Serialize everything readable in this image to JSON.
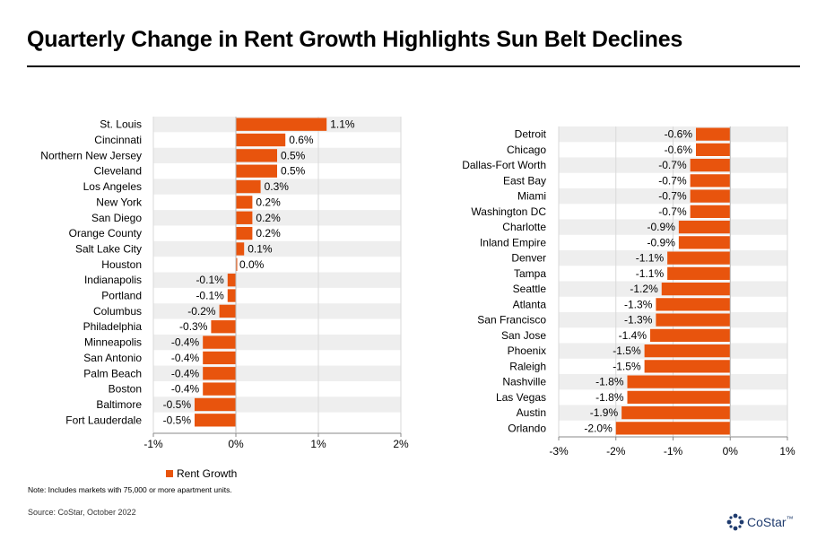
{
  "page": {
    "title": "Quarterly Change in Rent Growth Highlights Sun Belt Declines",
    "legend_label": "Rent Growth",
    "note": "Note: Includes markets with 75,000 or more apartment units.",
    "source": "Source: CoStar,  October 2022",
    "logo_text": "CoStar",
    "logo_mark": "™",
    "bar_color": "#e8540d",
    "band_color": "#eeeeee",
    "logo_color": "#1f3b6e"
  },
  "chart_data": [
    {
      "type": "bar",
      "orientation": "horizontal",
      "categories": [
        "St. Louis",
        "Cincinnati",
        "Northern New Jersey",
        "Cleveland",
        "Los Angeles",
        "New York",
        "San Diego",
        "Orange County",
        "Salt Lake City",
        "Houston",
        "Indianapolis",
        "Portland",
        "Columbus",
        "Philadelphia",
        "Minneapolis",
        "San Antonio",
        "Palm Beach",
        "Boston",
        "Baltimore",
        "Fort Lauderdale"
      ],
      "series": [
        {
          "name": "Rent Growth",
          "values": [
            1.1,
            0.6,
            0.5,
            0.5,
            0.3,
            0.2,
            0.2,
            0.2,
            0.1,
            0.0,
            -0.1,
            -0.1,
            -0.2,
            -0.3,
            -0.4,
            -0.4,
            -0.4,
            -0.4,
            -0.5,
            -0.5
          ]
        }
      ],
      "labels": [
        "1.1%",
        "0.6%",
        "0.5%",
        "0.5%",
        "0.3%",
        "0.2%",
        "0.2%",
        "0.2%",
        "0.1%",
        "0.0%",
        "-0.1%",
        "-0.1%",
        "-0.2%",
        "-0.3%",
        "-0.4%",
        "-0.4%",
        "-0.4%",
        "-0.4%",
        "-0.5%",
        "-0.5%"
      ],
      "xlim": [
        -1,
        2
      ],
      "xticks": [
        -1,
        0,
        1,
        2
      ],
      "xtick_labels": [
        "-1%",
        "0%",
        "1%",
        "2%"
      ]
    },
    {
      "type": "bar",
      "orientation": "horizontal",
      "categories": [
        "Detroit",
        "Chicago",
        "Dallas-Fort Worth",
        "East Bay",
        "Miami",
        "Washington DC",
        "Charlotte",
        "Inland Empire",
        "Denver",
        "Tampa",
        "Seattle",
        "Atlanta",
        "San Francisco",
        "San Jose",
        "Phoenix",
        "Raleigh",
        "Nashville",
        "Las Vegas",
        "Austin",
        "Orlando"
      ],
      "series": [
        {
          "name": "Rent Growth",
          "values": [
            -0.6,
            -0.6,
            -0.7,
            -0.7,
            -0.7,
            -0.7,
            -0.9,
            -0.9,
            -1.1,
            -1.1,
            -1.2,
            -1.3,
            -1.3,
            -1.4,
            -1.5,
            -1.5,
            -1.8,
            -1.8,
            -1.9,
            -2.0
          ]
        }
      ],
      "labels": [
        "-0.6%",
        "-0.6%",
        "-0.7%",
        "-0.7%",
        "-0.7%",
        "-0.7%",
        "-0.9%",
        "-0.9%",
        "-1.1%",
        "-1.1%",
        "-1.2%",
        "-1.3%",
        "-1.3%",
        "-1.4%",
        "-1.5%",
        "-1.5%",
        "-1.8%",
        "-1.8%",
        "-1.9%",
        "-2.0%"
      ],
      "xlim": [
        -3,
        1
      ],
      "xticks": [
        -3,
        -2,
        -1,
        0,
        1
      ],
      "xtick_labels": [
        "-3%",
        "-2%",
        "-1%",
        "0%",
        "1%"
      ]
    }
  ]
}
